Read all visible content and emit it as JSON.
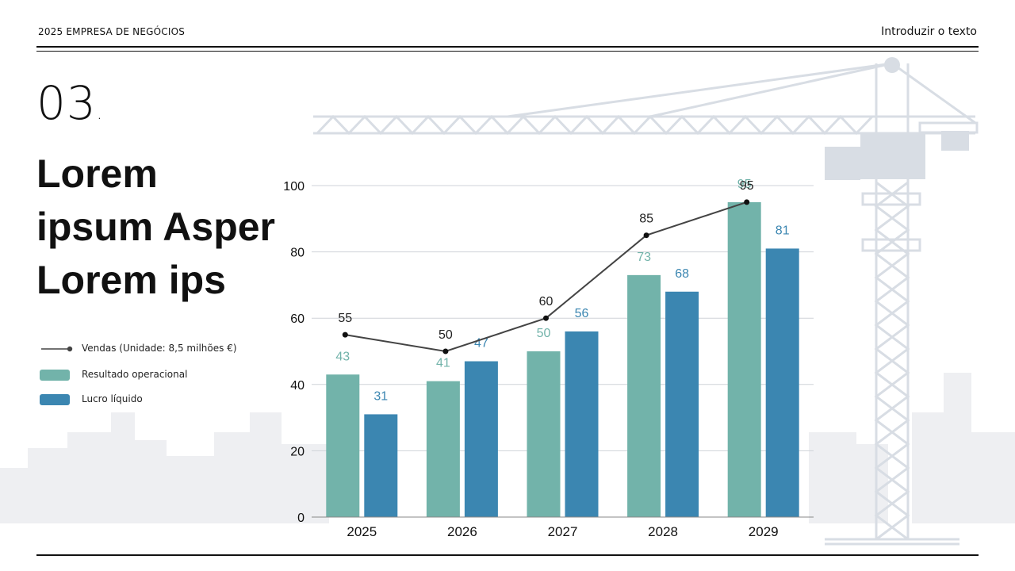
{
  "header": {
    "left_text": "2025 EMPRESA DE NEGÓCIOS",
    "right_text": "Introduzir o texto"
  },
  "section": {
    "number": "03",
    "dot": "."
  },
  "title": {
    "line1": "Lorem",
    "line2": "ipsum Asper",
    "line3": "Lorem ips"
  },
  "legend": {
    "sales_label": "Vendas (Unidade: 8,5 milhões €)",
    "operating_label": "Resultado operacional",
    "net_label": "Lucro líquido"
  },
  "colors": {
    "operating": "#72b3aa",
    "net": "#3b86b1",
    "sales_line": "#444444",
    "sales_marker": "#111111",
    "background_art": "#dfe3e8"
  },
  "chart_data": {
    "type": "bar",
    "categories": [
      "2025",
      "2026",
      "2027",
      "2028",
      "2029"
    ],
    "series": [
      {
        "name": "Resultado operacional",
        "type": "bar",
        "values": [
          43,
          41,
          50,
          73,
          95
        ]
      },
      {
        "name": "Lucro líquido",
        "type": "bar",
        "values": [
          31,
          47,
          56,
          68,
          81
        ]
      },
      {
        "name": "Vendas (Unidade: 8,5 milhões €)",
        "type": "line",
        "values": [
          55,
          50,
          60,
          85,
          95
        ]
      }
    ],
    "y_ticks": [
      "0",
      "20",
      "40",
      "60",
      "80",
      "100"
    ],
    "ylim": [
      0,
      100
    ],
    "grid": true,
    "legend_position": "left"
  }
}
